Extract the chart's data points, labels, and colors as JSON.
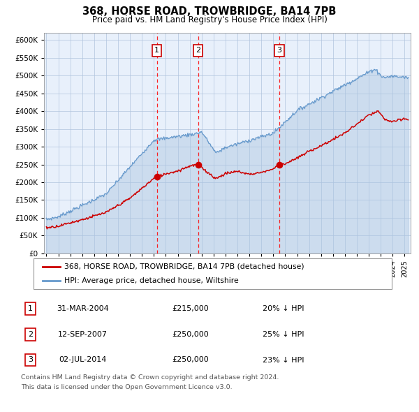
{
  "title": "368, HORSE ROAD, TROWBRIDGE, BA14 7PB",
  "subtitle": "Price paid vs. HM Land Registry's House Price Index (HPI)",
  "legend_red": "368, HORSE ROAD, TROWBRIDGE, BA14 7PB (detached house)",
  "legend_blue": "HPI: Average price, detached house, Wiltshire",
  "footer1": "Contains HM Land Registry data © Crown copyright and database right 2024.",
  "footer2": "This data is licensed under the Open Government Licence v3.0.",
  "transactions": [
    {
      "num": 1,
      "date": "31-MAR-2004",
      "price": "£215,000",
      "pct": "20%",
      "year": 2004.25,
      "price_val": 215000
    },
    {
      "num": 2,
      "date": "12-SEP-2007",
      "price": "£250,000",
      "pct": "25%",
      "year": 2007.71,
      "price_val": 250000
    },
    {
      "num": 3,
      "date": "02-JUL-2014",
      "price": "£250,000",
      "pct": "23%",
      "year": 2014.5,
      "price_val": 250000
    }
  ],
  "plot_bg": "#e8f0fb",
  "grid_color": "#b0c4de",
  "red_color": "#cc0000",
  "blue_color": "#6699cc",
  "blue_fill_color": "#aac4e0",
  "ylim": [
    0,
    620000
  ],
  "yticks": [
    0,
    50000,
    100000,
    150000,
    200000,
    250000,
    300000,
    350000,
    400000,
    450000,
    500000,
    550000,
    600000
  ],
  "xlim_start": 1994.8,
  "xlim_end": 2025.5
}
